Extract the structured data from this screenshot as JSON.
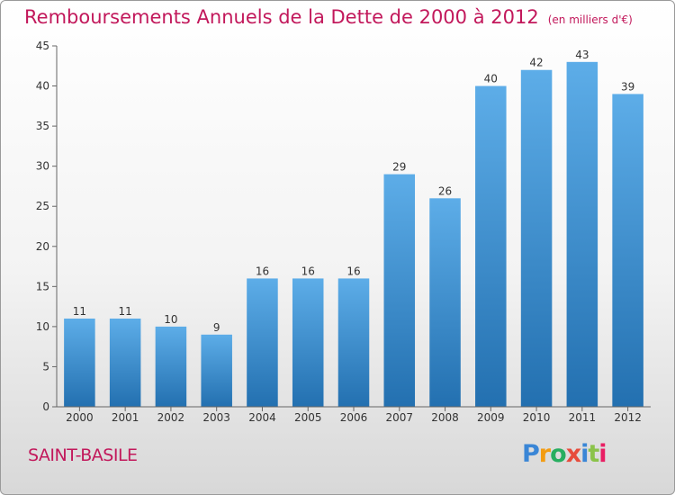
{
  "title": "Remboursements Annuels de la Dette de 2000 à 2012",
  "unit": "(en milliers d'€)",
  "city": "SAINT-BASILE",
  "logo": {
    "letters": [
      "P",
      "r",
      "o",
      "x",
      "i",
      "t",
      "i"
    ],
    "colors": [
      "#3a86d6",
      "#f39c12",
      "#27ae60",
      "#e74c3c",
      "#3a86d6",
      "#8bc34a",
      "#e91e63"
    ]
  },
  "colors": {
    "bar_light": "#5dade8",
    "bar_dark": "#2370b0",
    "title": "#c2185b"
  },
  "chart_data": {
    "type": "bar",
    "title": "Remboursements Annuels de la Dette de 2000 à 2012",
    "xlabel": "",
    "ylabel": "",
    "categories": [
      "2000",
      "2001",
      "2002",
      "2003",
      "2004",
      "2005",
      "2006",
      "2007",
      "2008",
      "2009",
      "2010",
      "2011",
      "2012"
    ],
    "values": [
      11,
      11,
      10,
      9,
      16,
      16,
      16,
      29,
      26,
      40,
      42,
      43,
      39
    ],
    "ylim": [
      0,
      45
    ],
    "yticks": [
      0,
      5,
      10,
      15,
      20,
      25,
      30,
      35,
      40,
      45
    ],
    "grid": false,
    "legend": "none"
  }
}
